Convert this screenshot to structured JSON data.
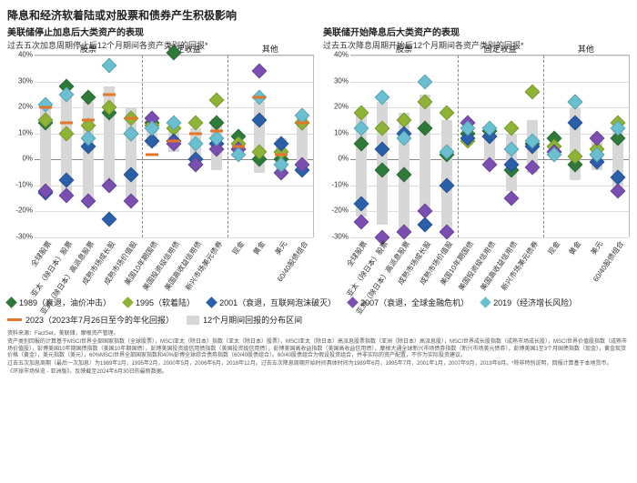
{
  "title_main": "降息和经济软着陆或对股票和债券产生积极影响",
  "charts": {
    "left": {
      "subtitle": "美联储停止加息后大类资产的表现",
      "subtitle2": "过去五次加息周期停止后12个月期间各资产类别的回报*"
    },
    "right": {
      "subtitle": "美联储开始降息后大类资产的表现",
      "subtitle2": "过去五次降息周期开始后12个月期间各资产类别的回报*"
    }
  },
  "axes": {
    "ymin": -30,
    "ymax": 40,
    "yticks": [
      -30,
      -20,
      -10,
      0,
      10,
      20,
      30,
      40
    ],
    "ytick_labels": [
      "-30%",
      "-20%",
      "-10%",
      "0%",
      "10%",
      "20%",
      "30%",
      "40%"
    ]
  },
  "palette": {
    "y1989": "#2f7a3a",
    "y1995": "#8fb339",
    "y2001": "#2b5fa8",
    "y2007": "#7a4fb0",
    "y2019": "#6bbfd1",
    "y2023": "#e2762b",
    "range_bar": "#d7d7d7",
    "grid": "#dddddd",
    "axis": "#888888",
    "text": "#222222"
  },
  "groups": [
    {
      "label": "股票",
      "start": 0,
      "end": 5
    },
    {
      "label": "固定收益",
      "start": 5,
      "end": 9
    },
    {
      "label": "其他",
      "start": 9,
      "end": 13
    }
  ],
  "x_labels": [
    "全球股票",
    "亚太（除日本）股票",
    "亚洲（除日本）高派息股票",
    "成熟市场成长股",
    "成熟市场价值股",
    "美国10年期国债",
    "美国投资级信用债",
    "美国高收益信用债",
    "新兴市场美元债券",
    "现金",
    "黄金",
    "美元",
    "60/40股债组合"
  ],
  "left_data": {
    "series": [
      {
        "idx": 0,
        "range": [
          -12,
          21
        ],
        "pts": {
          "y1989": 14,
          "y1995": 15,
          "y2001": -13,
          "y2007": -12,
          "y2019": 21
        },
        "y2023": 20
      },
      {
        "idx": 1,
        "range": [
          -14,
          25
        ],
        "pts": {
          "y1989": 28,
          "y1995": 10,
          "y2001": -8,
          "y2007": -14,
          "y2019": 25
        },
        "y2023": 14
      },
      {
        "idx": 2,
        "range": [
          -16,
          22
        ],
        "pts": {
          "y1989": 24,
          "y1995": 13,
          "y2001": 5,
          "y2007": -16,
          "y2019": 8
        },
        "y2023": 15
      },
      {
        "idx": 3,
        "range": [
          -10,
          28
        ],
        "pts": {
          "y1989": 18,
          "y1995": 20,
          "y2001": -23,
          "y2007": -10,
          "y2019": 36
        },
        "y2023": 25
      },
      {
        "idx": 4,
        "range": [
          -16,
          20
        ],
        "pts": {
          "y1989": 10,
          "y1995": 16,
          "y2001": -6,
          "y2007": -16,
          "y2019": 10
        },
        "y2023": 16
      },
      {
        "idx": 5,
        "range": [
          5,
          14
        ],
        "pts": {
          "y1989": 14,
          "y1995": 13,
          "y2001": 7,
          "y2007": 16,
          "y2019": 12
        },
        "y2023": 2
      },
      {
        "idx": 6,
        "range": [
          3,
          13
        ],
        "pts": {
          "y1989": 41,
          "y1995": 12,
          "y2001": 7,
          "y2007": 6,
          "y2019": 14
        },
        "y2023": 7
      },
      {
        "idx": 7,
        "range": [
          -3,
          12
        ],
        "pts": {
          "y1989": -2,
          "y1995": 14,
          "y2001": 0,
          "y2007": -2,
          "y2019": 6
        },
        "y2023": 10
      },
      {
        "idx": 8,
        "range": [
          -4,
          16
        ],
        "pts": {
          "y1989": 14,
          "y1995": 23,
          "y2001": 6,
          "y2007": 4,
          "y2019": 8
        },
        "y2023": 11
      },
      {
        "idx": 9,
        "range": [
          2,
          6
        ],
        "pts": {
          "y1989": 9,
          "y1995": 6,
          "y2001": 4,
          "y2007": 4,
          "y2019": 2
        },
        "y2023": 5
      },
      {
        "idx": 10,
        "range": [
          -5,
          22
        ],
        "pts": {
          "y1989": 0,
          "y1995": 3,
          "y2001": 15,
          "y2007": 34,
          "y2019": 24
        },
        "y2023": 24
      },
      {
        "idx": 11,
        "range": [
          -6,
          8
        ],
        "pts": {
          "y1989": 0,
          "y1995": 3,
          "y2001": 6,
          "y2007": -5,
          "y2019": -2
        },
        "y2023": 2
      },
      {
        "idx": 12,
        "range": [
          -3,
          16
        ],
        "pts": {
          "y1989": 14,
          "y1995": 14,
          "y2001": -4,
          "y2007": -2,
          "y2019": 17
        },
        "y2023": 14
      }
    ]
  },
  "right_data": {
    "series": [
      {
        "idx": 0,
        "range": [
          -22,
          18
        ],
        "pts": {
          "y1989": 6,
          "y1995": 18,
          "y2001": -17,
          "y2007": -24,
          "y2019": 12
        }
      },
      {
        "idx": 1,
        "range": [
          -25,
          22
        ],
        "pts": {
          "y1989": -4,
          "y1995": 12,
          "y2001": 4,
          "y2007": -30,
          "y2019": 24
        }
      },
      {
        "idx": 2,
        "range": [
          -28,
          18
        ],
        "pts": {
          "y1989": -6,
          "y1995": 15,
          "y2001": 10,
          "y2007": -28,
          "y2019": 8
        }
      },
      {
        "idx": 3,
        "range": [
          -20,
          25
        ],
        "pts": {
          "y1989": 12,
          "y1995": 22,
          "y2001": -25,
          "y2007": -20,
          "y2019": 30
        }
      },
      {
        "idx": 4,
        "range": [
          -28,
          15
        ],
        "pts": {
          "y1989": 2,
          "y1995": 18,
          "y2001": -10,
          "y2007": -28,
          "y2019": 3
        }
      },
      {
        "idx": 5,
        "range": [
          6,
          15
        ],
        "pts": {
          "y1989": 10,
          "y1995": 7,
          "y2001": 8,
          "y2007": 14,
          "y2019": 12
        }
      },
      {
        "idx": 6,
        "range": [
          -2,
          12
        ],
        "pts": {
          "y1989": 11,
          "y1995": 9,
          "y2001": 9,
          "y2007": -2,
          "y2019": 12
        }
      },
      {
        "idx": 7,
        "range": [
          -12,
          10
        ],
        "pts": {
          "y1989": -4,
          "y1995": 12,
          "y2001": -2,
          "y2007": -15,
          "y2019": 4
        }
      },
      {
        "idx": 8,
        "range": [
          -5,
          15
        ],
        "pts": {
          "y1989": 6,
          "y1995": 26,
          "y2001": 5,
          "y2007": -3,
          "y2019": 7
        }
      },
      {
        "idx": 9,
        "range": [
          1,
          6
        ],
        "pts": {
          "y1989": 8,
          "y1995": 5,
          "y2001": 3,
          "y2007": 3,
          "y2019": 2
        }
      },
      {
        "idx": 10,
        "range": [
          -8,
          20
        ],
        "pts": {
          "y1989": -2,
          "y1995": 1,
          "y2001": 14,
          "y2007": 22,
          "y2019": 22
        }
      },
      {
        "idx": 11,
        "range": [
          -4,
          10
        ],
        "pts": {
          "y1989": 2,
          "y1995": 4,
          "y2001": -1,
          "y2007": 8,
          "y2019": 2
        }
      },
      {
        "idx": 12,
        "range": [
          -12,
          14
        ],
        "pts": {
          "y1989": 8,
          "y1995": 14,
          "y2001": -7,
          "y2007": -12,
          "y2019": 12
        }
      }
    ]
  },
  "legend": [
    {
      "key": "y1989",
      "type": "diamond",
      "label": "1989（衰退，油价冲击）"
    },
    {
      "key": "y1995",
      "type": "diamond",
      "label": "1995（软着陆）"
    },
    {
      "key": "y2001",
      "type": "diamond",
      "label": "2001（衰退，互联网泡沫破灭）"
    },
    {
      "key": "y2007",
      "type": "diamond",
      "label": "2007（衰退，全球金融危机）"
    },
    {
      "key": "y2019",
      "type": "diamond",
      "label": "2019（经济增长风险）"
    },
    {
      "key": "y2023",
      "type": "dash",
      "label": "2023（2023年7月26日至今的年化回报）"
    },
    {
      "key": "range_bar",
      "type": "box",
      "label": "12个月期间回报的分布区间"
    }
  ],
  "footnotes": {
    "source": "资料来源：FactSet，美联储，摩根资产管理。",
    "note1": "资产类别回报的计算基于MSCI世界全部国家指数（全球股票），MSCI亚太（除日本）指数（亚太（除日本）股票），MSCI亚太（除日本）高派息股票指数（亚洲（除日本）高派息股），MSCI世界成长股指数（成熟市场成长股），MSCI世界价值股指数（成熟市场价值股），彭博美国10年期国债指数（美国10年期国债），彭博美国投资级信用债指数（美国投资级信用债），彭博美国高收益指数（美国高收益信用债），摩根大通全球新兴市场债券指数（新兴市场美元债券），彭博美国1至3个月国债指数（现金），黄金现货价格（黄金），美元指数（美元），60%MSCI世界全部国家指数和40%彭博全球综合债券指数（60/40股债组合）。60/40股债组合为假设投资组合，并非实际的资产配置，不作为实际投资建议。",
    "note2": "过去五次加息周期（最后一次加息）为1989年2月，1995年2月，2000年5月，2006年6月，2018年12月。过去五次降息周期开始时间具体时间为1989年6月，1995年7月，2001年1月，2007年9月，2019年8月。*除非特别说明，回报计算基于本地货币。",
    "note3": "《环球市场纵览 - 亚洲版》。反映截至2024年6月30日的最新数据。"
  }
}
